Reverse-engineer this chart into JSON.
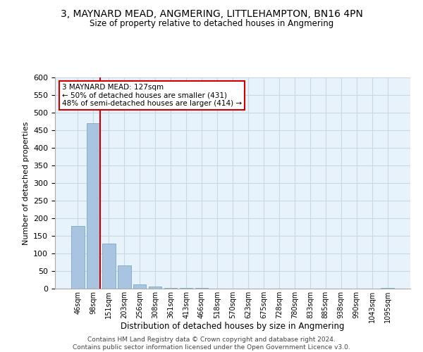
{
  "title": "3, MAYNARD MEAD, ANGMERING, LITTLEHAMPTON, BN16 4PN",
  "subtitle": "Size of property relative to detached houses in Angmering",
  "xlabel": "Distribution of detached houses by size in Angmering",
  "ylabel": "Number of detached properties",
  "bar_color": "#a8c4e0",
  "bar_edge_color": "#7aaac8",
  "grid_color": "#c8d8e8",
  "background_color": "#e8f2fb",
  "bin_labels": [
    "46sqm",
    "98sqm",
    "151sqm",
    "203sqm",
    "256sqm",
    "308sqm",
    "361sqm",
    "413sqm",
    "466sqm",
    "518sqm",
    "570sqm",
    "623sqm",
    "675sqm",
    "728sqm",
    "780sqm",
    "833sqm",
    "885sqm",
    "938sqm",
    "990sqm",
    "1043sqm",
    "1095sqm"
  ],
  "bar_values": [
    178,
    470,
    128,
    67,
    13,
    6,
    3,
    3,
    2,
    1,
    0,
    0,
    0,
    0,
    0,
    0,
    0,
    0,
    0,
    0,
    2
  ],
  "vline_x_index": 1,
  "vline_color": "#cc0000",
  "annotation_text": "3 MAYNARD MEAD: 127sqm\n← 50% of detached houses are smaller (431)\n48% of semi-detached houses are larger (414) →",
  "annotation_box_color": "#ffffff",
  "annotation_box_edge": "#cc0000",
  "ylim": [
    0,
    600
  ],
  "yticks": [
    0,
    50,
    100,
    150,
    200,
    250,
    300,
    350,
    400,
    450,
    500,
    550,
    600
  ],
  "footnote1": "Contains HM Land Registry data © Crown copyright and database right 2024.",
  "footnote2": "Contains public sector information licensed under the Open Government Licence v3.0."
}
